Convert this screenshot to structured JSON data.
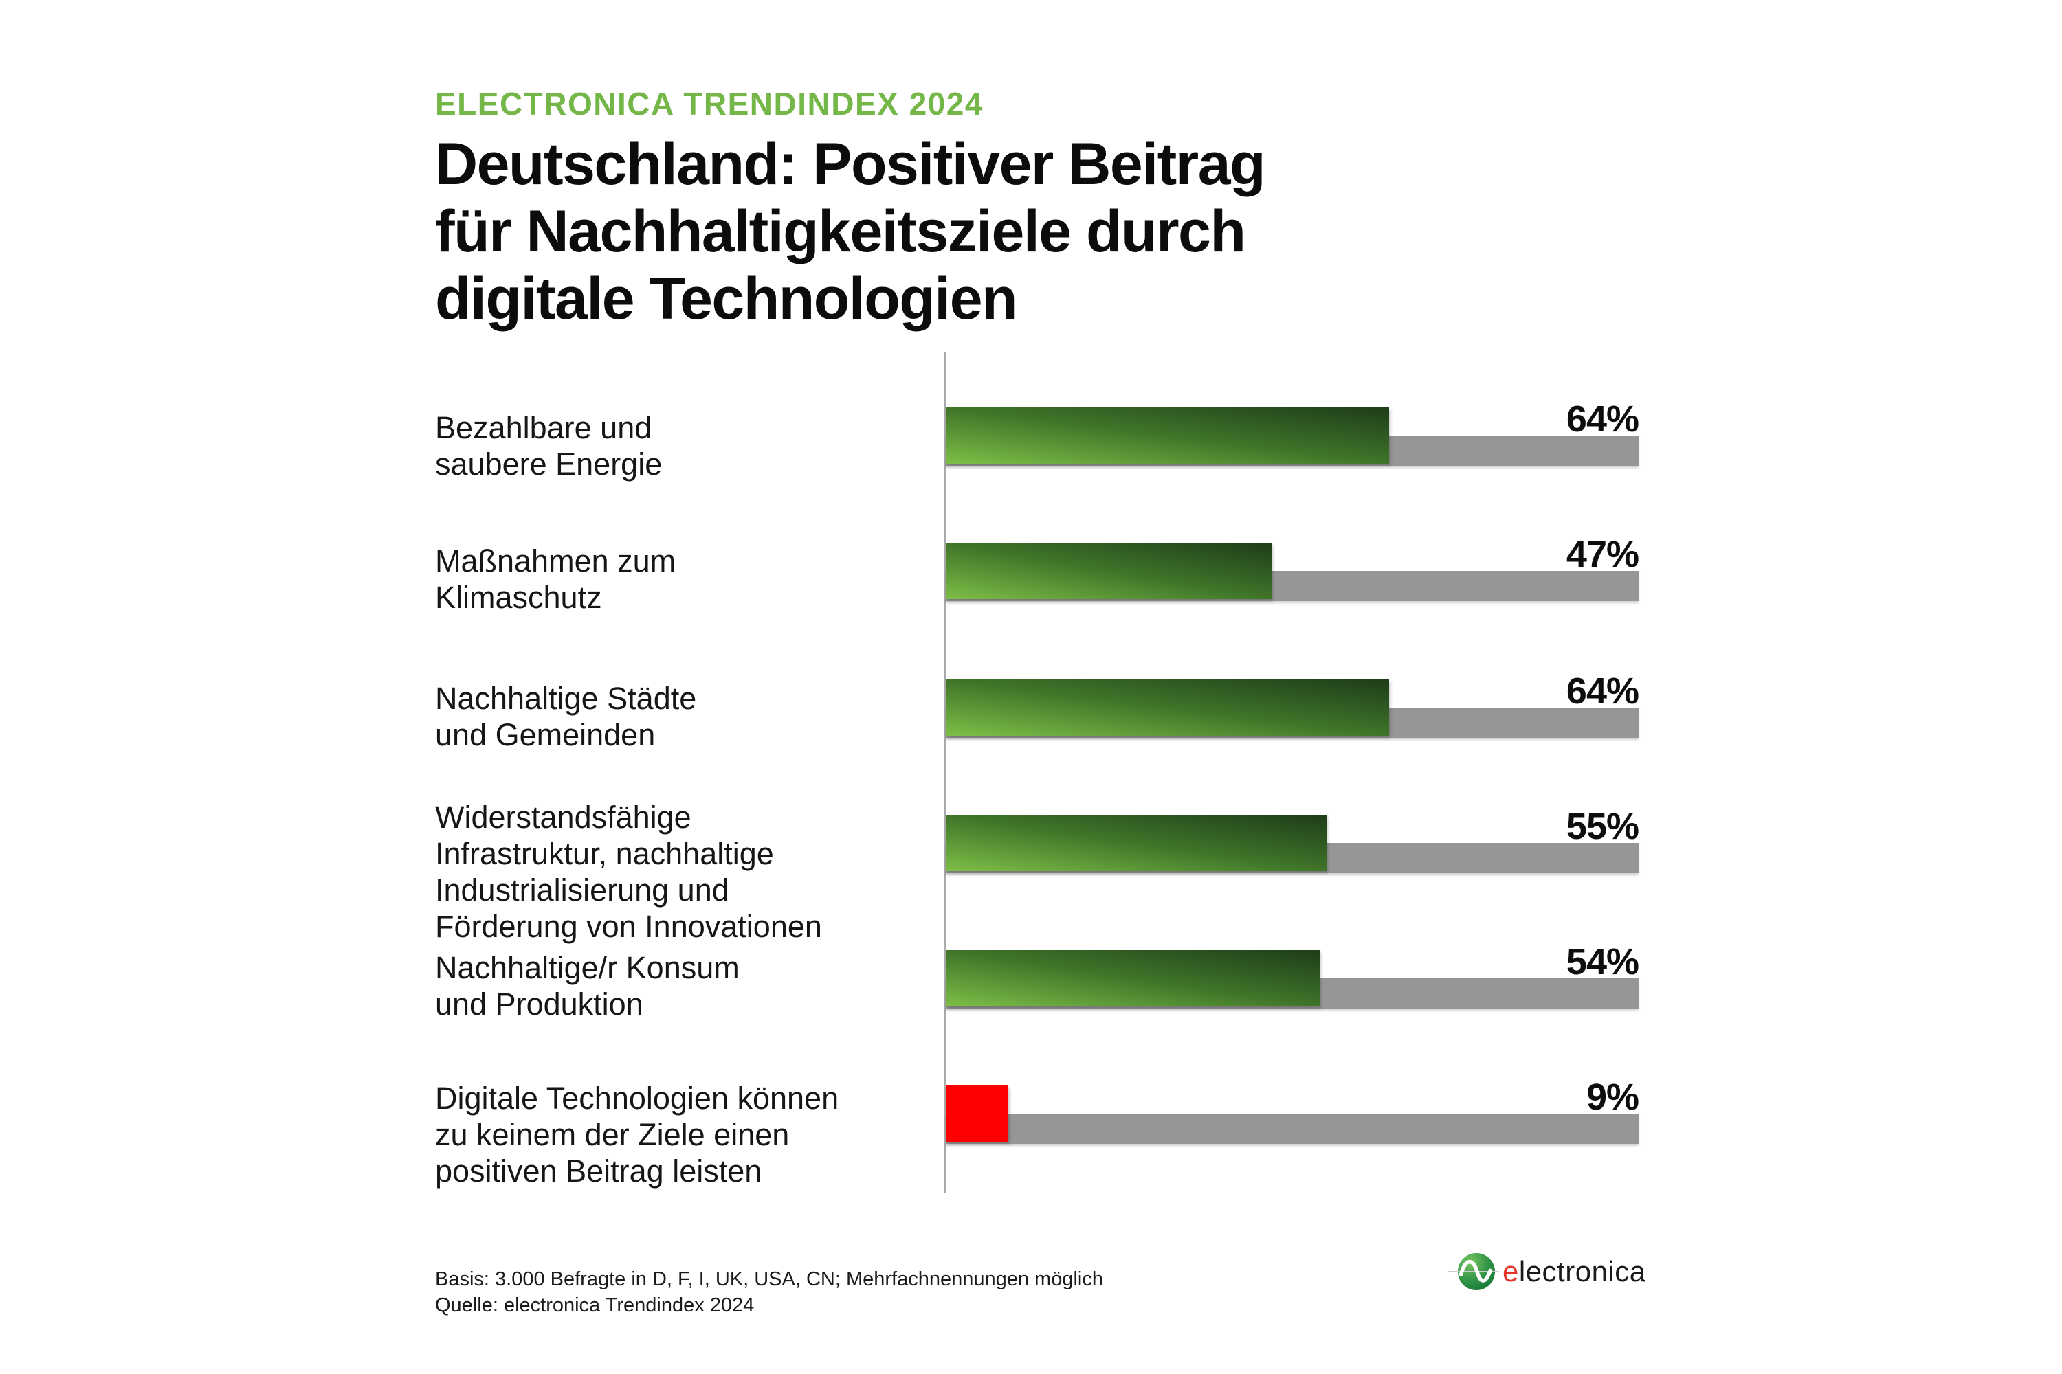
{
  "kicker": "ELECTRONICA TRENDINDEX 2024",
  "title": {
    "line1": "Deutschland: Positiver Beitrag",
    "line2": "für Nachhaltigkeitsziele durch",
    "line3": "digitale Technologien"
  },
  "chart_data": {
    "type": "bar",
    "orientation": "horizontal",
    "unit": "%",
    "xlim": [
      0,
      100
    ],
    "grid": false,
    "legend": false,
    "title": "Deutschland: Positiver Beitrag für Nachhaltigkeitsziele durch digitale Technologien",
    "subtitle": "ELECTRONICA TRENDINDEX 2024",
    "categories": [
      "Bezahlbare und saubere Energie",
      "Maßnahmen zum Klimaschutz",
      "Nachhaltige Städte und Gemeinden",
      "Widerstandsfähige Infrastruktur, nachhaltige Industrialisierung und Förderung von Innovationen",
      "Nachhaltige/r Konsum und Produktion",
      "Digitale Technologien können zu keinem der Ziele einen positiven Beitrag leisten"
    ],
    "label_lines": [
      [
        "Bezahlbare und",
        "saubere Energie"
      ],
      [
        "Maßnahmen zum",
        "Klimaschutz"
      ],
      [
        "Nachhaltige Städte",
        "und Gemeinden"
      ],
      [
        "Widerstandsfähige",
        "Infrastruktur, nachhaltige",
        "Industrialisierung und",
        "Förderung von Innovationen"
      ],
      [
        "Nachhaltige/r Konsum",
        "und Produktion"
      ],
      [
        "Digitale Technologien können",
        "zu keinem der Ziele einen",
        "positiven Beitrag leisten"
      ]
    ],
    "values": [
      64,
      47,
      64,
      55,
      54,
      9
    ],
    "value_labels": [
      "64%",
      "47%",
      "64%",
      "55%",
      "54%",
      "9%"
    ],
    "bar_styles": [
      "green-gradient",
      "green-gradient",
      "green-gradient",
      "green-gradient",
      "green-gradient",
      "red"
    ],
    "colors": {
      "kicker_green": "#74b647",
      "bar_green_light": "#7dbf47",
      "bar_green_mid": "#3f7529",
      "bar_green_dark": "#1e3c19",
      "bar_red": "#ff0000",
      "track_gray": "#969696",
      "axis_gray": "#aaaaaa"
    }
  },
  "footer": {
    "line1": "Basis: 3.000 Befragte in D, F, I, UK, USA, CN; Mehrfachnennungen möglich",
    "line2": "Quelle: electronica Trendindex 2024"
  },
  "logo": {
    "wordmark_first": "e",
    "wordmark_rest": "lectronica"
  }
}
